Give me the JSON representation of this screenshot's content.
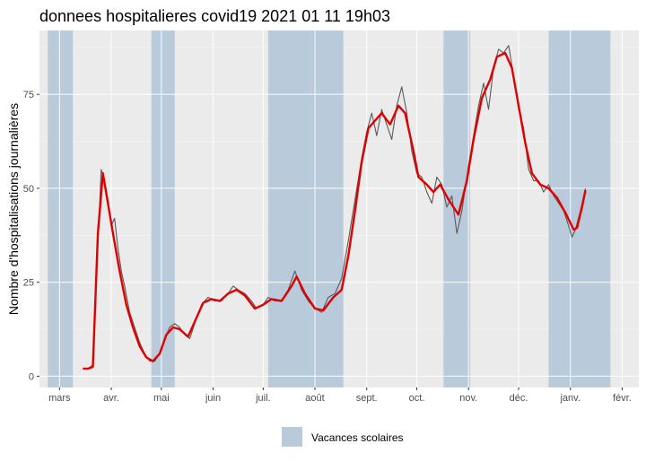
{
  "chart_data": {
    "type": "line",
    "title": "donnees hospitalieres covid19 2021 01 11 19h03",
    "xlabel": "",
    "ylabel": "Nombre d'hospitalisations journalières",
    "ylim": [
      -3,
      92
    ],
    "yticks": [
      0,
      25,
      50,
      75
    ],
    "x_domain": [
      "2020-02-18",
      "2021-02-11"
    ],
    "xticks": [
      {
        "date": "2020-03-01",
        "label": "mars"
      },
      {
        "date": "2020-04-01",
        "label": "avr."
      },
      {
        "date": "2020-05-01",
        "label": "mai"
      },
      {
        "date": "2020-06-01",
        "label": "juin"
      },
      {
        "date": "2020-07-01",
        "label": "juil."
      },
      {
        "date": "2020-08-01",
        "label": "août"
      },
      {
        "date": "2020-09-01",
        "label": "sept."
      },
      {
        "date": "2020-10-01",
        "label": "oct."
      },
      {
        "date": "2020-11-01",
        "label": "nov."
      },
      {
        "date": "2020-12-01",
        "label": "déc."
      },
      {
        "date": "2021-01-01",
        "label": "janv."
      },
      {
        "date": "2021-02-01",
        "label": "févr."
      }
    ],
    "grid": true,
    "legend": {
      "position": "bottom",
      "label": "Vacances scolaires",
      "color": "#b9cadb"
    },
    "vacances": [
      [
        "2020-02-23",
        "2020-03-09"
      ],
      [
        "2020-04-25",
        "2020-05-09"
      ],
      [
        "2020-07-04",
        "2020-08-18"
      ],
      [
        "2020-10-17",
        "2020-11-02"
      ],
      [
        "2020-12-19",
        "2021-01-25"
      ]
    ],
    "series": [
      {
        "color": "#595959",
        "points": [
          [
            "2020-03-15",
            2
          ],
          [
            "2020-03-18",
            2
          ],
          [
            "2020-03-21",
            3
          ],
          [
            "2020-03-24",
            35
          ],
          [
            "2020-03-26",
            55
          ],
          [
            "2020-03-28",
            52
          ],
          [
            "2020-03-30",
            47
          ],
          [
            "2020-04-01",
            40
          ],
          [
            "2020-04-03",
            42
          ],
          [
            "2020-04-05",
            34
          ],
          [
            "2020-04-07",
            28
          ],
          [
            "2020-04-09",
            24
          ],
          [
            "2020-04-12",
            17
          ],
          [
            "2020-04-15",
            13
          ],
          [
            "2020-04-18",
            9
          ],
          [
            "2020-04-21",
            6
          ],
          [
            "2020-04-24",
            4
          ],
          [
            "2020-04-27",
            4
          ],
          [
            "2020-04-30",
            6
          ],
          [
            "2020-05-03",
            10
          ],
          [
            "2020-05-06",
            13
          ],
          [
            "2020-05-09",
            14
          ],
          [
            "2020-05-12",
            13
          ],
          [
            "2020-05-15",
            11
          ],
          [
            "2020-05-18",
            10
          ],
          [
            "2020-05-21",
            14
          ],
          [
            "2020-05-25",
            19
          ],
          [
            "2020-05-29",
            21
          ],
          [
            "2020-06-02",
            20
          ],
          [
            "2020-06-06",
            20
          ],
          [
            "2020-06-10",
            22
          ],
          [
            "2020-06-13",
            24
          ],
          [
            "2020-06-16",
            23
          ],
          [
            "2020-06-20",
            22
          ],
          [
            "2020-06-24",
            20
          ],
          [
            "2020-06-27",
            18
          ],
          [
            "2020-07-01",
            19
          ],
          [
            "2020-07-04",
            21
          ],
          [
            "2020-07-08",
            20
          ],
          [
            "2020-07-12",
            20
          ],
          [
            "2020-07-16",
            23
          ],
          [
            "2020-07-20",
            28
          ],
          [
            "2020-07-24",
            23
          ],
          [
            "2020-07-28",
            20
          ],
          [
            "2020-08-01",
            18
          ],
          [
            "2020-08-05",
            17
          ],
          [
            "2020-08-09",
            21
          ],
          [
            "2020-08-13",
            22
          ],
          [
            "2020-08-17",
            26
          ],
          [
            "2020-08-21",
            36
          ],
          [
            "2020-08-25",
            47
          ],
          [
            "2020-08-29",
            58
          ],
          [
            "2020-09-01",
            65
          ],
          [
            "2020-09-04",
            70
          ],
          [
            "2020-09-07",
            64
          ],
          [
            "2020-09-10",
            71
          ],
          [
            "2020-09-13",
            67
          ],
          [
            "2020-09-16",
            63
          ],
          [
            "2020-09-19",
            72
          ],
          [
            "2020-09-22",
            77
          ],
          [
            "2020-09-25",
            70
          ],
          [
            "2020-09-28",
            60
          ],
          [
            "2020-10-01",
            54
          ],
          [
            "2020-10-04",
            53
          ],
          [
            "2020-10-07",
            49
          ],
          [
            "2020-10-10",
            46
          ],
          [
            "2020-10-13",
            53
          ],
          [
            "2020-10-16",
            51
          ],
          [
            "2020-10-19",
            45
          ],
          [
            "2020-10-22",
            48
          ],
          [
            "2020-10-25",
            38
          ],
          [
            "2020-10-28",
            44
          ],
          [
            "2020-11-01",
            56
          ],
          [
            "2020-11-04",
            64
          ],
          [
            "2020-11-07",
            72
          ],
          [
            "2020-11-10",
            78
          ],
          [
            "2020-11-13",
            71
          ],
          [
            "2020-11-16",
            82
          ],
          [
            "2020-11-19",
            87
          ],
          [
            "2020-11-22",
            86
          ],
          [
            "2020-11-25",
            88
          ],
          [
            "2020-11-28",
            80
          ],
          [
            "2020-12-01",
            71
          ],
          [
            "2020-12-04",
            66
          ],
          [
            "2020-12-07",
            55
          ],
          [
            "2020-12-10",
            52
          ],
          [
            "2020-12-13",
            52
          ],
          [
            "2020-12-16",
            49
          ],
          [
            "2020-12-19",
            51
          ],
          [
            "2020-12-22",
            48
          ],
          [
            "2020-12-25",
            46
          ],
          [
            "2020-12-28",
            44
          ],
          [
            "2020-12-31",
            40
          ],
          [
            "2021-01-02",
            37
          ],
          [
            "2021-01-04",
            39
          ],
          [
            "2021-01-07",
            44
          ],
          [
            "2021-01-10",
            50
          ]
        ]
      },
      {
        "color": "#e00000",
        "points": [
          [
            "2020-03-15",
            2
          ],
          [
            "2020-03-18",
            2
          ],
          [
            "2020-03-21",
            2.5
          ],
          [
            "2020-03-24",
            38
          ],
          [
            "2020-03-27",
            54
          ],
          [
            "2020-03-30",
            46
          ],
          [
            "2020-04-02",
            38
          ],
          [
            "2020-04-06",
            28
          ],
          [
            "2020-04-10",
            19
          ],
          [
            "2020-04-14",
            13
          ],
          [
            "2020-04-18",
            8
          ],
          [
            "2020-04-22",
            5
          ],
          [
            "2020-04-26",
            4
          ],
          [
            "2020-04-30",
            6
          ],
          [
            "2020-05-04",
            11
          ],
          [
            "2020-05-08",
            13
          ],
          [
            "2020-05-12",
            12.5
          ],
          [
            "2020-05-17",
            10.5
          ],
          [
            "2020-05-21",
            14.5
          ],
          [
            "2020-05-26",
            19.5
          ],
          [
            "2020-05-31",
            20.5
          ],
          [
            "2020-06-05",
            20
          ],
          [
            "2020-06-10",
            22
          ],
          [
            "2020-06-15",
            23
          ],
          [
            "2020-06-20",
            21.5
          ],
          [
            "2020-06-26",
            18
          ],
          [
            "2020-07-01",
            19
          ],
          [
            "2020-07-06",
            20.5
          ],
          [
            "2020-07-12",
            20
          ],
          [
            "2020-07-18",
            24
          ],
          [
            "2020-07-21",
            26.5
          ],
          [
            "2020-07-26",
            22
          ],
          [
            "2020-08-01",
            18
          ],
          [
            "2020-08-06",
            17.5
          ],
          [
            "2020-08-12",
            21
          ],
          [
            "2020-08-17",
            23
          ],
          [
            "2020-08-21",
            32
          ],
          [
            "2020-08-25",
            44
          ],
          [
            "2020-08-29",
            57
          ],
          [
            "2020-09-02",
            66
          ],
          [
            "2020-09-06",
            68
          ],
          [
            "2020-09-10",
            70
          ],
          [
            "2020-09-15",
            67
          ],
          [
            "2020-09-20",
            72
          ],
          [
            "2020-09-24",
            70
          ],
          [
            "2020-09-29",
            60
          ],
          [
            "2020-10-02",
            53
          ],
          [
            "2020-10-07",
            51
          ],
          [
            "2020-10-11",
            49
          ],
          [
            "2020-10-15",
            51
          ],
          [
            "2020-10-20",
            47
          ],
          [
            "2020-10-26",
            43
          ],
          [
            "2020-10-31",
            52
          ],
          [
            "2020-11-04",
            63
          ],
          [
            "2020-11-09",
            74
          ],
          [
            "2020-11-14",
            79
          ],
          [
            "2020-11-18",
            85
          ],
          [
            "2020-11-23",
            86
          ],
          [
            "2020-11-27",
            82
          ],
          [
            "2020-12-01",
            72
          ],
          [
            "2020-12-05",
            62
          ],
          [
            "2020-12-09",
            54
          ],
          [
            "2020-12-14",
            51
          ],
          [
            "2020-12-19",
            50
          ],
          [
            "2020-12-24",
            47.5
          ],
          [
            "2020-12-29",
            43.5
          ],
          [
            "2021-01-03",
            39
          ],
          [
            "2021-01-05",
            39.5
          ],
          [
            "2021-01-08",
            45
          ],
          [
            "2021-01-10",
            49.5
          ]
        ]
      }
    ]
  }
}
